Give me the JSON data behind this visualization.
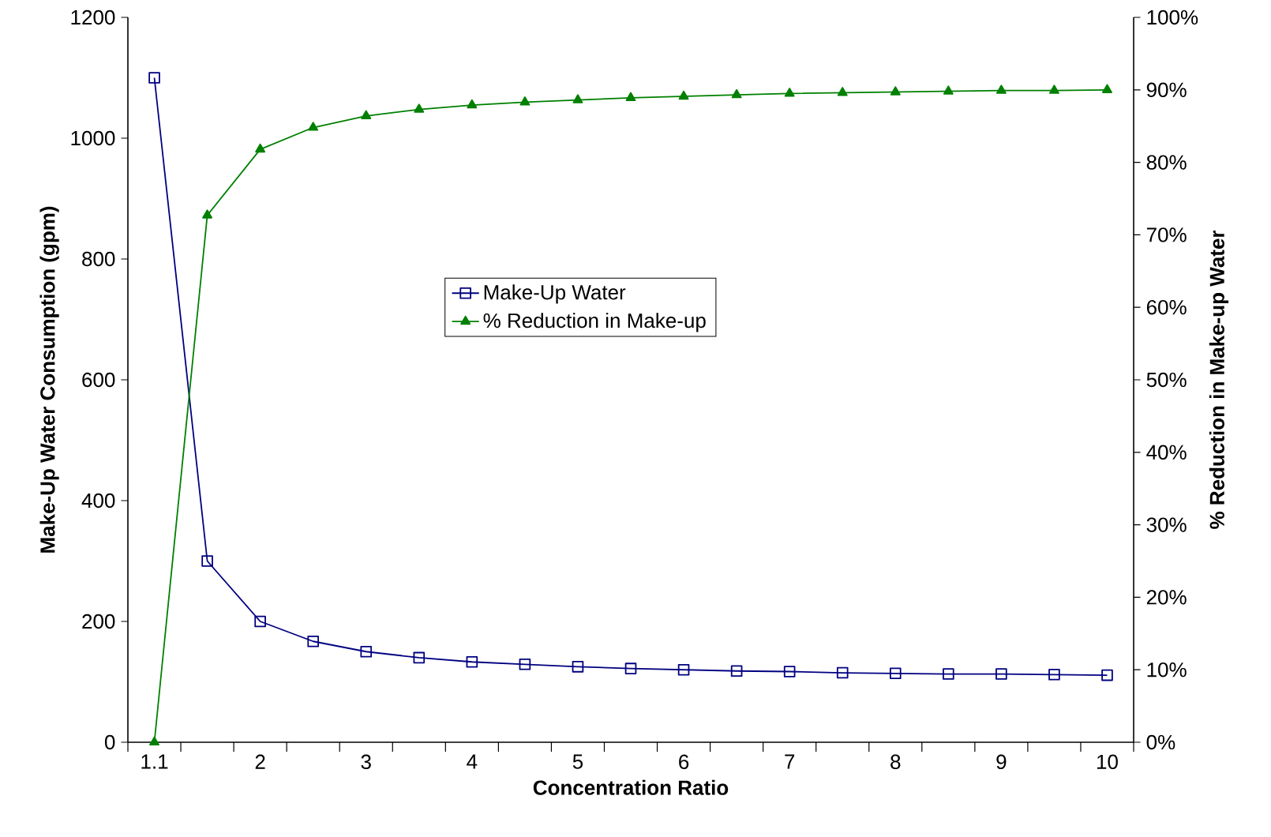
{
  "chart_data": {
    "type": "line",
    "xlabel": "Concentration Ratio",
    "ylabel": "Make-Up Water Consumption (gpm)",
    "y2label": "% Reduction in Make-up Water",
    "categories": [
      "1.1",
      null,
      "2",
      null,
      "3",
      null,
      "4",
      null,
      "5",
      null,
      "6",
      null,
      "7",
      null,
      "8",
      null,
      "9",
      null,
      "10"
    ],
    "series": [
      {
        "name": "Make-Up Water",
        "color": "#000080",
        "marker": "square",
        "values": [
          1100,
          300,
          200,
          167,
          150,
          140,
          133,
          129,
          125,
          122,
          120,
          118,
          117,
          115,
          114,
          113,
          113,
          112,
          111
        ]
      },
      {
        "name": "% Reduction in Make-up",
        "color": "#008000",
        "marker": "triangle",
        "axis": "y2",
        "values": [
          0,
          72.7,
          81.8,
          84.8,
          86.4,
          87.3,
          87.9,
          88.3,
          88.6,
          88.9,
          89.1,
          89.3,
          89.5,
          89.6,
          89.7,
          89.8,
          89.9,
          89.9,
          90.0
        ]
      }
    ],
    "ylim": [
      0,
      1200
    ],
    "yticks": [
      0,
      200,
      400,
      600,
      800,
      1000,
      1200
    ],
    "y2lim": [
      0,
      100
    ],
    "y2ticks": [
      {
        "value": 0,
        "label": "0%"
      },
      {
        "value": 10,
        "label": "10%"
      },
      {
        "value": 20,
        "label": "20%"
      },
      {
        "value": 30,
        "label": "30%"
      },
      {
        "value": 40,
        "label": "40%"
      },
      {
        "value": 50,
        "label": "50%"
      },
      {
        "value": 60,
        "label": "60%"
      },
      {
        "value": 70,
        "label": "70%"
      },
      {
        "value": 80,
        "label": "80%"
      },
      {
        "value": 90,
        "label": "90%"
      },
      {
        "value": 100,
        "label": "100%"
      }
    ],
    "legend": "center",
    "line_style": "solid"
  }
}
